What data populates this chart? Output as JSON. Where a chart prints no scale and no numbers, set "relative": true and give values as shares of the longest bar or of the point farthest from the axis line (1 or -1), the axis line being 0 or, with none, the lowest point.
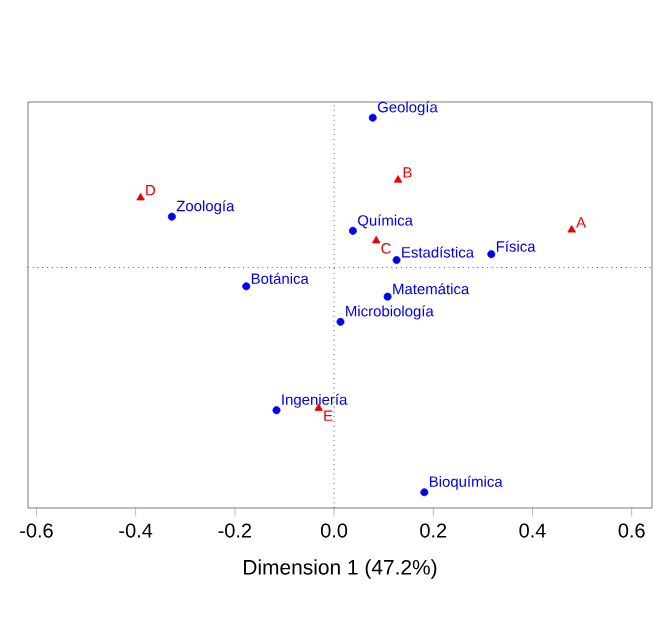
{
  "chart_data": {
    "type": "scatter",
    "xlabel": "Dimension 1 (47.2%)",
    "relative": true,
    "series": [
      {
        "color": "#0000ee",
        "marker": "circle",
        "x": [
          0.078,
          -0.327,
          -0.177,
          0.038,
          0.126,
          0.317,
          0.108,
          0.013,
          -0.116,
          0.182
        ],
        "values": [
          0.666,
          0.226,
          -0.084,
          0.163,
          0.033,
          0.059,
          -0.13,
          -0.242,
          -0.635,
          -1
        ]
      },
      {
        "color": "#ee0000",
        "marker": "triangle",
        "x": [
          0.479,
          0.129,
          0.085,
          -0.39,
          -0.031
        ],
        "values": [
          0.167,
          0.389,
          0.119,
          0.31,
          -0.626
        ]
      }
    ],
    "annotations": [
      {
        "text": "Geología",
        "x": 0.078,
        "y": 0.666
      },
      {
        "text": "Zoología",
        "x": -0.327,
        "y": 0.226
      },
      {
        "text": "Botánica",
        "x": -0.177,
        "y": -0.084
      },
      {
        "text": "Química",
        "x": 0.038,
        "y": 0.163
      },
      {
        "text": "Estadística",
        "x": 0.126,
        "y": 0.033
      },
      {
        "text": "Física",
        "x": 0.317,
        "y": 0.059
      },
      {
        "text": "Matemática",
        "x": 0.108,
        "y": -0.13
      },
      {
        "text": "Microbiología",
        "x": 0.013,
        "y": -0.242
      },
      {
        "text": "Ingeniería",
        "x": -0.116,
        "y": -0.635
      },
      {
        "text": "Bioquímica",
        "x": 0.182,
        "y": -1
      },
      {
        "text": "A",
        "x": 0.479,
        "y": 0.167
      },
      {
        "text": "B",
        "x": 0.129,
        "y": 0.389
      },
      {
        "text": "C",
        "x": 0.085,
        "y": 0.119
      },
      {
        "text": "D",
        "x": -0.39,
        "y": 0.31
      },
      {
        "text": "E",
        "x": -0.031,
        "y": -0.626
      }
    ],
    "ref_lines": [
      {
        "axis": "x",
        "value": 0,
        "line_style": "dotted"
      }
    ],
    "xlim": [
      -0.617,
      0.641
    ],
    "xticks": [
      -0.6,
      -0.4,
      -0.2,
      {
        "value": 0,
        "label": "0.0"
      },
      0.2,
      0.4,
      0.6
    ]
  }
}
